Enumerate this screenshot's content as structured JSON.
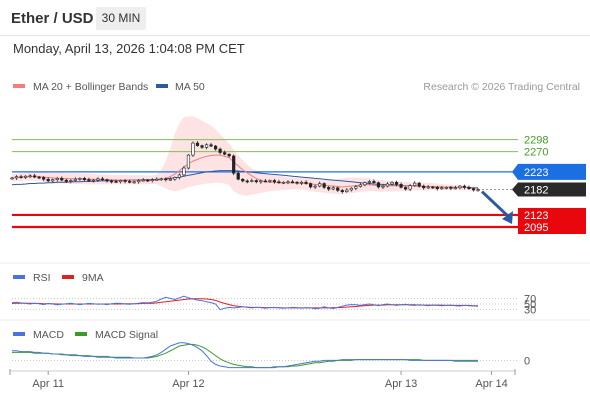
{
  "header": {
    "title": "Ether / USD",
    "timeframe": "30 MIN",
    "datetime": "Monday, April 13, 2026 1:04:08 PM CET"
  },
  "main_panel": {
    "legend": [
      {
        "label": "MA 20 + Bollinger Bands",
        "color": "#f08080"
      },
      {
        "label": "MA 50",
        "color": "#2c5aa0"
      }
    ],
    "copyright": "Research © 2026 Trading Central"
  },
  "rsi_panel": {
    "legend": [
      {
        "label": "RSI",
        "color": "#4a74d9"
      },
      {
        "label": "9MA",
        "color": "#dd2222"
      }
    ]
  },
  "macd_panel": {
    "legend": [
      {
        "label": "MACD",
        "color": "#4a74d9"
      },
      {
        "label": "MACD Signal",
        "color": "#3c9a2a"
      }
    ]
  },
  "colors": {
    "support": "#e8070c",
    "pivot": "#1c6fe0",
    "resistance_line": "#7fbf56",
    "resistance_text": "#4a9a2a",
    "current_price": "#2a2a2a",
    "arrow": "#2c5aa0",
    "band_fill": "#fde3e3",
    "candle": "#222222"
  },
  "chart_data": {
    "type": "candlestick",
    "x_tick_labels": [
      "Apr 11",
      "Apr 12",
      "Apr 13",
      "Apr 14"
    ],
    "price_range": [
      2030,
      2390
    ],
    "levels": [
      {
        "value": 2298,
        "label": "2298",
        "kind": "resistance"
      },
      {
        "value": 2270,
        "label": "2270",
        "kind": "resistance"
      },
      {
        "value": 2223,
        "label": "2223",
        "kind": "pivot"
      },
      {
        "value": 2182,
        "label": "2182",
        "kind": "current_price"
      },
      {
        "value": 2123,
        "label": "2123",
        "kind": "support"
      },
      {
        "value": 2095,
        "label": "2095",
        "kind": "support"
      }
    ],
    "close": [
      2209,
      2212,
      2210,
      2213,
      2214,
      2211,
      2210,
      2206,
      2202,
      2205,
      2208,
      2204,
      2201,
      2203,
      2206,
      2208,
      2205,
      2202,
      2204,
      2207,
      2205,
      2202,
      2201,
      2200,
      2203,
      2201,
      2199,
      2200,
      2203,
      2204,
      2203,
      2205,
      2206,
      2207,
      2205,
      2206,
      2210,
      2216,
      2232,
      2262,
      2290,
      2284,
      2280,
      2286,
      2283,
      2276,
      2268,
      2264,
      2260,
      2220,
      2206,
      2202,
      2201,
      2203,
      2200,
      2202,
      2201,
      2203,
      2200,
      2198,
      2199,
      2200,
      2199,
      2197,
      2199,
      2196,
      2188,
      2190,
      2196,
      2187,
      2183,
      2186,
      2180,
      2177,
      2181,
      2185,
      2189,
      2193,
      2198,
      2201,
      2198,
      2188,
      2190,
      2195,
      2199,
      2194,
      2187,
      2183,
      2191,
      2197,
      2190,
      2186,
      2188,
      2187,
      2184,
      2186,
      2187,
      2185,
      2186,
      2190,
      2187,
      2184,
      2181,
      2182
    ],
    "bb_upper": [
      2218,
      2219,
      2220,
      2221,
      2221,
      2222,
      2222,
      2222,
      2221,
      2221,
      2221,
      2221,
      2220,
      2220,
      2220,
      2220,
      2219,
      2219,
      2218,
      2217,
      2217,
      2217,
      2216,
      2215,
      2216,
      2216,
      2215,
      2215,
      2215,
      2215,
      2214,
      2215,
      2216,
      2228,
      2248,
      2278,
      2312,
      2336,
      2350,
      2352,
      2352,
      2348,
      2342,
      2336,
      2330,
      2322,
      2310,
      2300,
      2288,
      2275,
      2262,
      2250,
      2240,
      2231,
      2225,
      2220,
      2218,
      2216,
      2215,
      2214,
      2212,
      2210,
      2210,
      2210,
      2209,
      2210,
      2209,
      2207,
      2205,
      2203,
      2205,
      2205,
      2207,
      2208,
      2210,
      2210,
      2210,
      2209,
      2209,
      2208,
      2206,
      2204,
      2204,
      2203,
      2201,
      2200,
      2200,
      2200,
      2199,
      2199,
      2198,
      2198,
      2198,
      2197,
      2196,
      2195,
      2194,
      2193,
      2192,
      2192,
      2191,
      2190,
      2189,
      2188
    ],
    "bb_lower": [
      2200,
      2201,
      2202,
      2203,
      2203,
      2203,
      2202,
      2200,
      2198,
      2197,
      2196,
      2196,
      2196,
      2195,
      2195,
      2195,
      2194,
      2194,
      2194,
      2194,
      2194,
      2194,
      2194,
      2194,
      2194,
      2194,
      2194,
      2194,
      2194,
      2194,
      2194,
      2195,
      2195,
      2190,
      2185,
      2180,
      2178,
      2180,
      2184,
      2188,
      2190,
      2192,
      2194,
      2196,
      2197,
      2198,
      2198,
      2196,
      2192,
      2178,
      2172,
      2169,
      2168,
      2170,
      2172,
      2174,
      2176,
      2178,
      2179,
      2180,
      2181,
      2182,
      2183,
      2183,
      2182,
      2181,
      2178,
      2177,
      2176,
      2175,
      2173,
      2172,
      2172,
      2172,
      2173,
      2174,
      2175,
      2177,
      2178,
      2178,
      2178,
      2177,
      2177,
      2178,
      2178,
      2178,
      2178,
      2178,
      2179,
      2180,
      2180,
      2180,
      2180,
      2181,
      2181,
      2181,
      2181,
      2181,
      2181,
      2180,
      2180,
      2180,
      2180,
      2179
    ],
    "ma20": [
      2209,
      2210,
      2211,
      2212,
      2212,
      2212,
      2212,
      2211,
      2210,
      2209,
      2208,
      2208,
      2208,
      2207,
      2207,
      2207,
      2206,
      2206,
      2206,
      2205,
      2205,
      2205,
      2205,
      2204,
      2204,
      2204,
      2204,
      2203,
      2203,
      2203,
      2203,
      2203,
      2204,
      2205,
      2208,
      2212,
      2218,
      2226,
      2234,
      2242,
      2248,
      2252,
      2256,
      2259,
      2261,
      2262,
      2262,
      2259,
      2256,
      2246,
      2237,
      2228,
      2221,
      2214,
      2208,
      2203,
      2200,
      2199,
      2199,
      2198,
      2198,
      2198,
      2198,
      2197,
      2197,
      2196,
      2195,
      2194,
      2193,
      2192,
      2191,
      2190,
      2189,
      2188,
      2189,
      2190,
      2191,
      2192,
      2193,
      2193,
      2192,
      2191,
      2191,
      2191,
      2191,
      2191,
      2191,
      2190,
      2190,
      2190,
      2190,
      2189,
      2189,
      2189,
      2189,
      2188,
      2188,
      2188,
      2187,
      2187,
      2187,
      2186,
      2185,
      2185
    ],
    "ma50": [
      2193,
      2194,
      2194,
      2195,
      2196,
      2196,
      2197,
      2197,
      2198,
      2198,
      2199,
      2199,
      2199,
      2200,
      2200,
      2200,
      2201,
      2201,
      2201,
      2202,
      2202,
      2202,
      2203,
      2203,
      2203,
      2203,
      2204,
      2204,
      2204,
      2205,
      2205,
      2205,
      2206,
      2206,
      2207,
      2208,
      2209,
      2211,
      2213,
      2215,
      2217,
      2219,
      2221,
      2223,
      2224,
      2225,
      2226,
      2226,
      2226,
      2226,
      2225,
      2224,
      2223,
      2222,
      2221,
      2220,
      2219,
      2218,
      2217,
      2216,
      2215,
      2214,
      2213,
      2212,
      2211,
      2210,
      2209,
      2208,
      2207,
      2206,
      2205,
      2204,
      2203,
      2202,
      2201,
      2200,
      2199,
      2198,
      2197,
      2196,
      2195,
      2194,
      2194,
      2193,
      2193,
      2192,
      2192,
      2191,
      2191,
      2190,
      2190,
      2189,
      2189,
      2189,
      2188,
      2188,
      2188,
      2187,
      2187,
      2187,
      2187,
      2187,
      2186,
      2186
    ],
    "forecast_target": 2095,
    "rsi": {
      "levels": [
        70,
        50,
        30
      ],
      "level_labels": [
        "70",
        "50",
        "30"
      ],
      "range": [
        0,
        100
      ],
      "rsi": [
        55,
        56,
        54,
        52,
        50,
        53,
        51,
        48,
        52,
        50,
        47,
        49,
        51,
        53,
        50,
        48,
        50,
        52,
        51,
        49,
        50,
        48,
        51,
        53,
        52,
        50,
        49,
        51,
        53,
        55,
        54,
        56,
        60,
        68,
        74,
        70,
        66,
        72,
        78,
        72,
        68,
        64,
        62,
        58,
        55,
        50,
        30,
        35,
        38,
        36,
        38,
        40,
        38,
        36,
        38,
        37,
        35,
        37,
        38,
        36,
        35,
        36,
        38,
        37,
        35,
        37,
        36,
        33,
        35,
        40,
        36,
        34,
        38,
        42,
        46,
        48,
        47,
        45,
        48,
        50,
        47,
        44,
        48,
        50,
        47,
        45,
        47,
        49,
        46,
        45,
        47,
        46,
        44,
        46,
        45,
        44,
        45,
        46,
        44,
        43,
        45,
        44,
        43,
        42
      ],
      "ma9": [
        52,
        53,
        53,
        53,
        53,
        52,
        52,
        51,
        51,
        51,
        50,
        50,
        50,
        50,
        50,
        50,
        50,
        50,
        50,
        50,
        50,
        50,
        50,
        50,
        50,
        51,
        51,
        51,
        51,
        52,
        52,
        53,
        54,
        56,
        58,
        60,
        62,
        64,
        66,
        68,
        69,
        69,
        69,
        68,
        66,
        63,
        57,
        52,
        48,
        44,
        42,
        40,
        39,
        38,
        38,
        38,
        37,
        37,
        37,
        37,
        36,
        36,
        36,
        36,
        36,
        36,
        36,
        36,
        36,
        36,
        36,
        37,
        37,
        38,
        39,
        40,
        41,
        43,
        44,
        45,
        46,
        46,
        46,
        47,
        47,
        47,
        47,
        47,
        47,
        47,
        46,
        46,
        46,
        46,
        46,
        46,
        45,
        45,
        45,
        45,
        45,
        45,
        44,
        44
      ]
    },
    "macd": {
      "zero_label": "0",
      "range": [
        -12,
        28
      ],
      "macd": [
        12,
        12,
        11,
        11,
        11,
        10,
        10,
        9,
        9,
        8,
        8,
        7,
        7,
        6,
        6,
        6,
        5,
        5,
        5,
        4,
        4,
        4,
        4,
        3,
        3,
        3,
        3,
        3,
        3,
        3,
        4,
        5,
        7,
        10,
        14,
        18,
        20,
        22,
        22,
        21,
        19,
        16,
        12,
        6,
        -1,
        -5,
        -7,
        -8,
        -9,
        -9,
        -9,
        -9,
        -9,
        -9,
        -9,
        -9,
        -9,
        -9,
        -8,
        -8,
        -8,
        -7,
        -6,
        -5,
        -4,
        -3,
        -2,
        -1,
        -1,
        0,
        0,
        0,
        0,
        1,
        1,
        1,
        1,
        1,
        1,
        1,
        1,
        1,
        1,
        1,
        1,
        1,
        1,
        1,
        0,
        0,
        0,
        0,
        0,
        0,
        0,
        0,
        0,
        0,
        -1,
        -1,
        -1,
        -1,
        -1,
        -1
      ],
      "signal": [
        10,
        10,
        10,
        10,
        10,
        9,
        9,
        9,
        9,
        8,
        8,
        8,
        7,
        7,
        7,
        6,
        6,
        6,
        5,
        5,
        5,
        5,
        4,
        4,
        4,
        4,
        4,
        3,
        3,
        3,
        3,
        4,
        5,
        7,
        9,
        12,
        15,
        18,
        19,
        20,
        20,
        19,
        17,
        14,
        10,
        6,
        2,
        -1,
        -3,
        -5,
        -6,
        -7,
        -8,
        -8,
        -9,
        -9,
        -9,
        -9,
        -9,
        -8,
        -8,
        -8,
        -7,
        -7,
        -6,
        -5,
        -4,
        -3,
        -3,
        -2,
        -1,
        -1,
        0,
        0,
        0,
        0,
        1,
        1,
        1,
        1,
        1,
        1,
        1,
        1,
        1,
        1,
        1,
        1,
        1,
        1,
        1,
        0,
        0,
        0,
        0,
        0,
        0,
        0,
        0,
        0,
        0,
        0,
        0,
        0
      ]
    }
  }
}
